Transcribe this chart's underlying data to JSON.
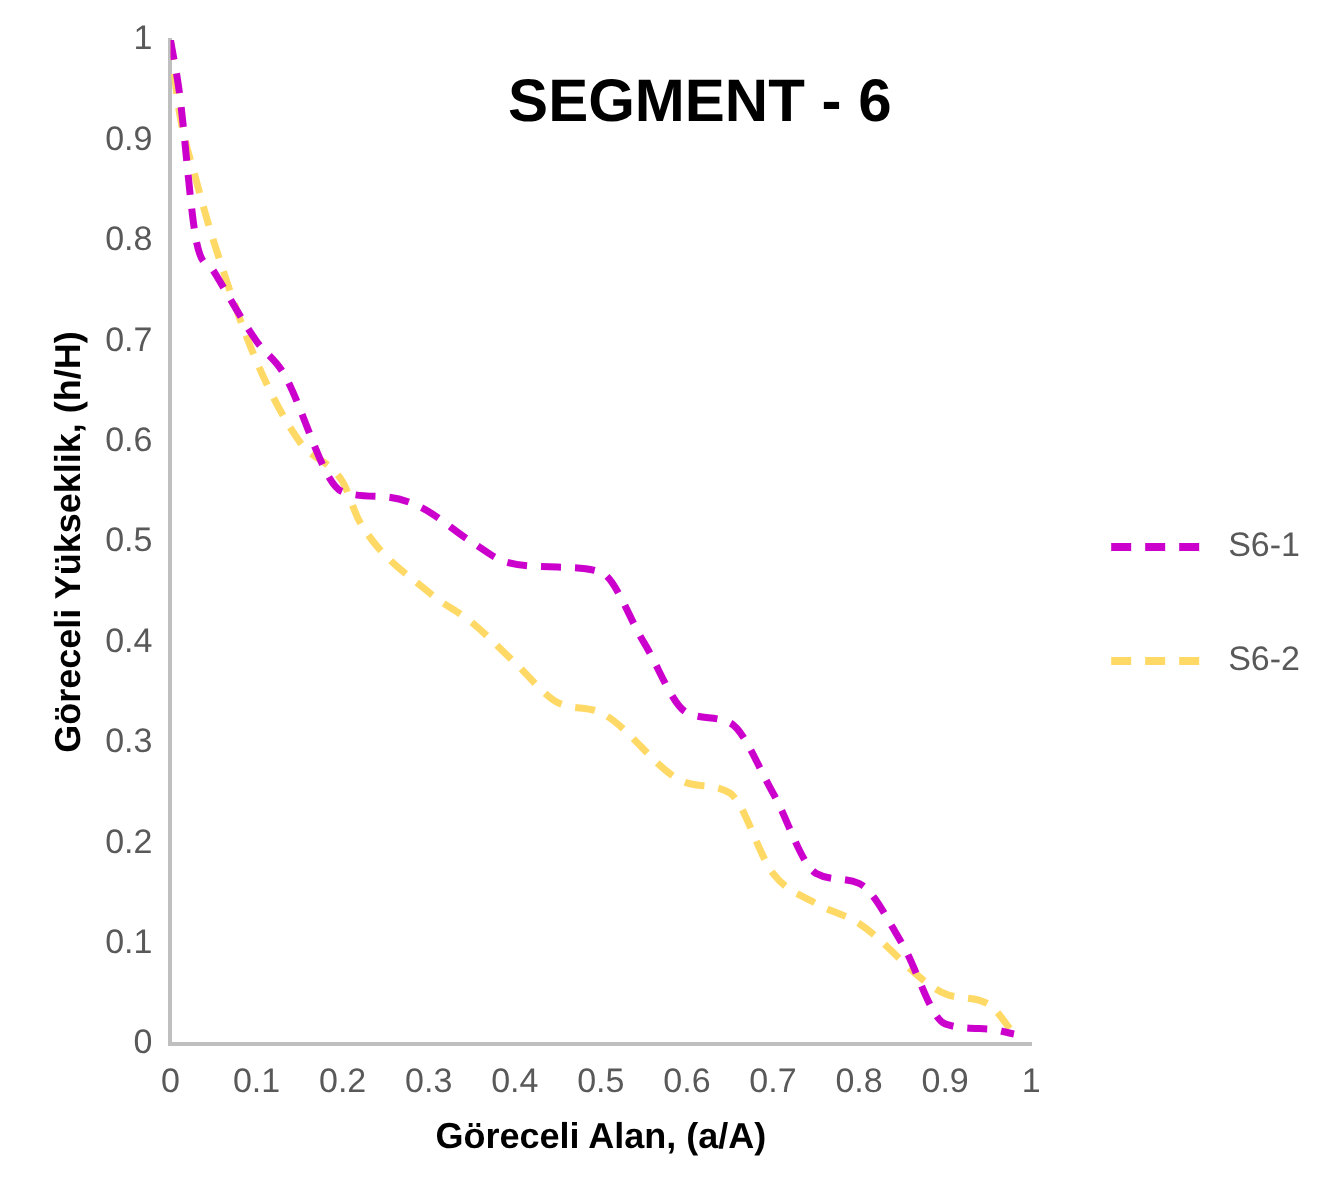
{
  "chart_data": {
    "type": "line",
    "title": "SEGMENT - 6",
    "xlabel": "Göreceli Alan, (a/A)",
    "ylabel": "Göreceli Yükseklik, (h/H)",
    "xlim": [
      0,
      1
    ],
    "xticks": [
      0,
      0.1,
      0.2,
      0.3,
      0.4,
      0.5,
      0.6,
      0.7,
      0.8,
      0.9,
      1
    ],
    "ylim": [
      0,
      1
    ],
    "yticks": [
      0,
      0.1,
      0.2,
      0.3,
      0.4,
      0.5,
      0.6,
      0.7,
      0.8,
      0.9,
      1
    ],
    "grid": false,
    "legend": "right",
    "marker": "none",
    "line_style": "dashed",
    "series": [
      {
        "name": "S6-1",
        "color": "#cc00cc",
        "x": [
          0,
          0.01,
          0.03,
          0.05,
          0.1,
          0.13,
          0.2,
          0.25,
          0.29,
          0.35,
          0.39,
          0.45,
          0.5,
          0.55,
          0.6,
          0.65,
          0.7,
          0.75,
          0.8,
          0.85,
          0.9,
          0.95,
          0.98
        ],
        "values": [
          1,
          0.95,
          0.8,
          0.77,
          0.7,
          0.67,
          0.55,
          0.545,
          0.535,
          0.5,
          0.48,
          0.475,
          0.47,
          0.4,
          0.33,
          0.32,
          0.25,
          0.17,
          0.16,
          0.1,
          0.02,
          0.015,
          0.01
        ]
      },
      {
        "name": "S6-2",
        "color": "#ffd966",
        "x": [
          0,
          0.01,
          0.03,
          0.05,
          0.1,
          0.15,
          0.2,
          0.22,
          0.3,
          0.35,
          0.4,
          0.45,
          0.5,
          0.6,
          0.65,
          0.7,
          0.75,
          0.8,
          0.9,
          0.95,
          0.98
        ],
        "values": [
          1,
          0.93,
          0.86,
          0.8,
          0.68,
          0.6,
          0.56,
          0.52,
          0.45,
          0.42,
          0.38,
          0.34,
          0.33,
          0.26,
          0.25,
          0.17,
          0.14,
          0.12,
          0.05,
          0.04,
          0.01
        ]
      }
    ]
  }
}
